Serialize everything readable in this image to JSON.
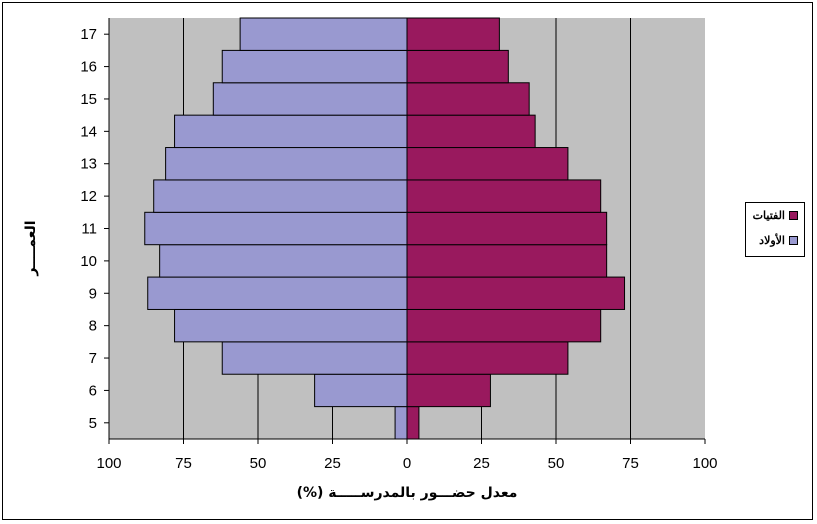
{
  "chart_data": {
    "type": "bar",
    "orientation": "horizontal-population-pyramid",
    "categories": [
      "5",
      "6",
      "7",
      "8",
      "9",
      "10",
      "11",
      "12",
      "13",
      "14",
      "15",
      "16",
      "17"
    ],
    "series": [
      {
        "name": "الفتيات",
        "side": "right",
        "color": "#99195e",
        "values": [
          4,
          28,
          54,
          65,
          73,
          67,
          67,
          65,
          54,
          43,
          41,
          34,
          31
        ]
      },
      {
        "name": "الأولاد",
        "side": "left",
        "color": "#9999d0",
        "values": [
          4,
          31,
          62,
          78,
          87,
          83,
          88,
          85,
          81,
          78,
          65,
          62,
          56
        ]
      }
    ],
    "x_ticks": [
      "100",
      "75",
      "50",
      "25",
      "0",
      "25",
      "50",
      "75",
      "100"
    ],
    "xlabel": "معدل حضـــور بالمدرســـــة (%)",
    "ylabel": "العمــــر",
    "xlim": [
      -100,
      100
    ],
    "grid": true,
    "plot_background": "#c0c0c0",
    "legend_position": "right"
  }
}
